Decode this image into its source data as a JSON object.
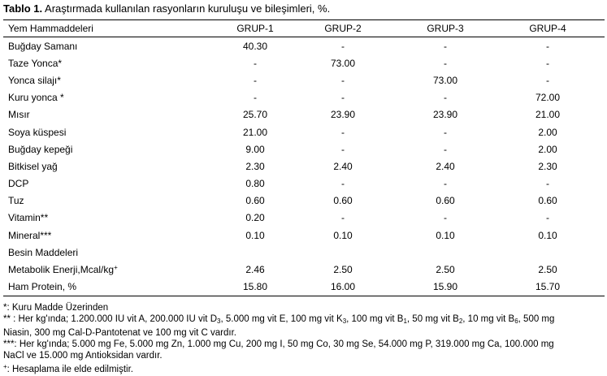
{
  "caption": {
    "label": "Tablo 1.",
    "text": " Araştırmada kullanılan rasyonların kuruluşu ve bileşimleri, %."
  },
  "header": [
    "Yem Hammaddeleri",
    "GRUP-1",
    "GRUP-2",
    "GRUP-3",
    "GRUP-4"
  ],
  "rows": [
    {
      "name": "Buğday Samanı",
      "values": [
        "40.30",
        "-",
        "-",
        "-"
      ]
    },
    {
      "name": "Taze Yonca*",
      "values": [
        "-",
        "73.00",
        "-",
        "-"
      ]
    },
    {
      "name": "Yonca silajı*",
      "values": [
        "-",
        "-",
        "73.00",
        "-"
      ]
    },
    {
      "name": "Kuru yonca *",
      "values": [
        "-",
        "-",
        "-",
        "72.00"
      ]
    },
    {
      "name": "Mısır",
      "values": [
        "25.70",
        "23.90",
        "23.90",
        "21.00"
      ]
    },
    {
      "name": "Soya küspesi",
      "values": [
        "21.00",
        "-",
        "-",
        "2.00"
      ]
    },
    {
      "name": "Buğday kepeği",
      "values": [
        "9.00",
        "-",
        "-",
        "2.00"
      ]
    },
    {
      "name": "Bitkisel yağ",
      "values": [
        "2.30",
        "2.40",
        "2.40",
        "2.30"
      ]
    },
    {
      "name": "DCP",
      "values": [
        "0.80",
        "-",
        "-",
        "-"
      ]
    },
    {
      "name": "Tuz",
      "values": [
        "0.60",
        "0.60",
        "0.60",
        "0.60"
      ]
    },
    {
      "name": "Vitamin**",
      "values": [
        "0.20",
        "-",
        "-",
        "-"
      ]
    },
    {
      "name": "Mineral***",
      "values": [
        "0.10",
        "0.10",
        "0.10",
        "0.10"
      ]
    },
    {
      "name": "Besin Maddeleri",
      "values": [
        "",
        "",
        "",
        ""
      ]
    },
    {
      "name": "Metabolik Enerji,Mcal/kg",
      "values": [
        "2.46",
        "2.50",
        "2.50",
        "2.50"
      ]
    },
    {
      "name": "Ham Protein, %",
      "values": [
        "15.80",
        "16.00",
        "15.90",
        "15.70"
      ]
    }
  ],
  "me_superscript": "+",
  "notes": {
    "n1": "*: Kuru Madde Üzerinden",
    "n2": {
      "a": "** : Her kg'ında; 1.200.000 IU vit A, 200.000 IU vit D",
      "a_sub": "3",
      "b": ", 5.000 mg vit E, 100 mg vit K",
      "b_sub": "3",
      "c": ", 100 mg vit B",
      "c_sub": "1",
      "d": ", 50 mg vit B",
      "d_sub": "2",
      "e": ", 10 mg vit B",
      "e_sub": "6",
      "f": ", 500 mg",
      "line2": "Niasin, 300 mg Cal-D-Pantotenat ve 100 mg vit C vardır."
    },
    "n3": {
      "line1": "***: Her kg'ında; 5.000 mg Fe, 5.000 mg Zn, 1.000 mg Cu, 200 mg I, 50 mg Co, 30 mg Se, 54.000 mg P, 319.000 mg Ca, 100.000 mg",
      "line2": "NaCl ve 15.000 mg Antioksidan vardır."
    },
    "n4": {
      "sup": "+",
      "text": ": Hesaplama ile elde edilmiştir."
    }
  }
}
